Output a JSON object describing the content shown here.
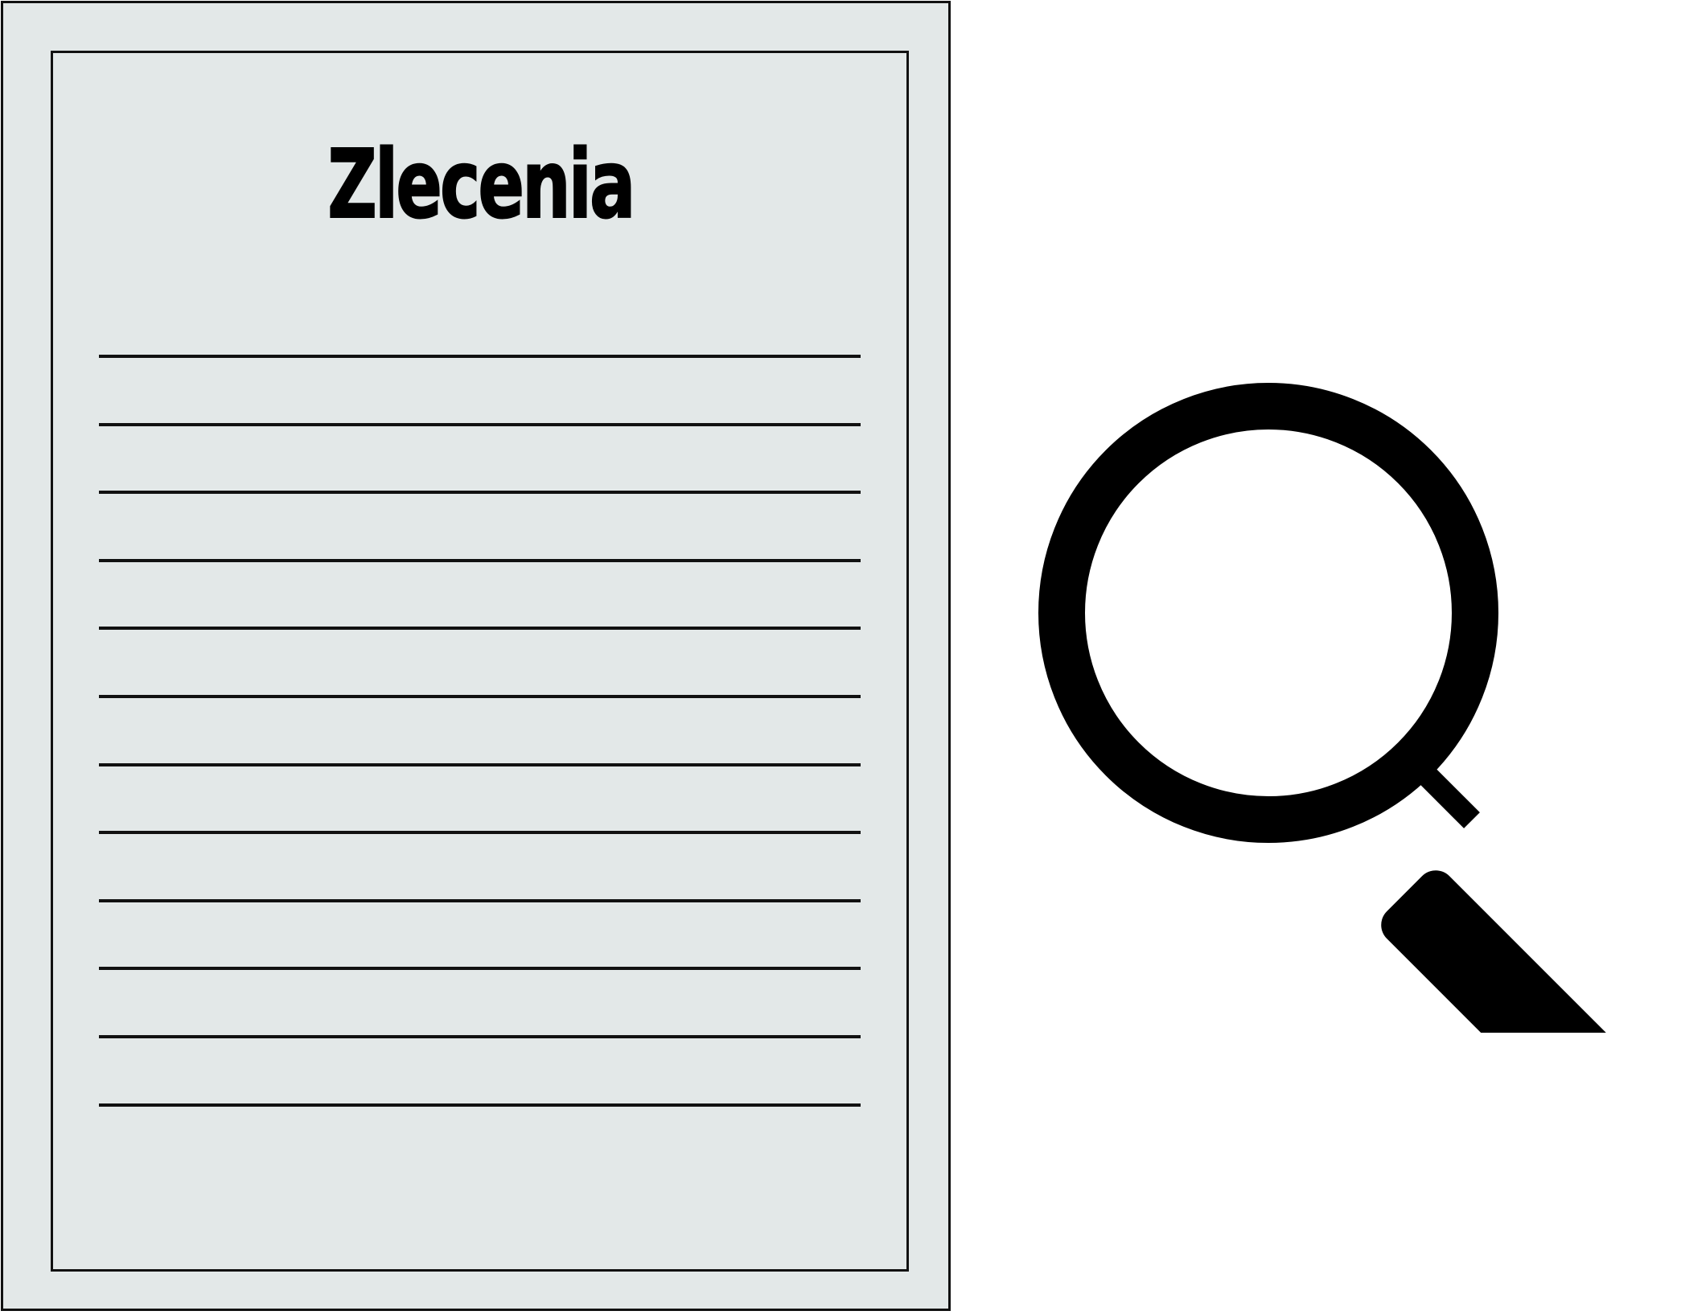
{
  "document": {
    "title": "Zlecenia",
    "line_count": 12,
    "paper_color": "#e3e8e8",
    "ink_color": "#111111"
  },
  "icons": {
    "document": "document-icon",
    "magnifier": "magnifying-glass-icon"
  }
}
